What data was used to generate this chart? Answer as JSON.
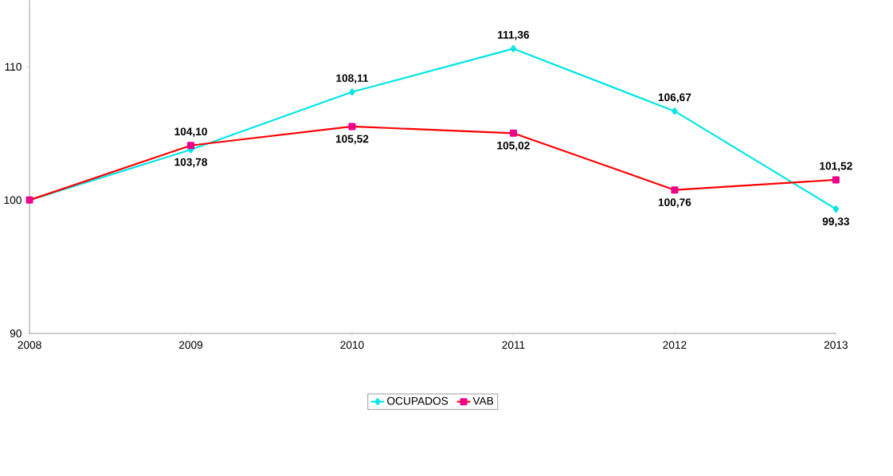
{
  "chart_data": {
    "type": "line",
    "categories": [
      "2008",
      "2009",
      "2010",
      "2011",
      "2012",
      "2013"
    ],
    "series": [
      {
        "name": "OCUPADOS",
        "color": "#00e5e5",
        "marker": "diamond",
        "values": [
          100,
          103.78,
          108.11,
          111.36,
          106.67,
          99.33
        ],
        "value_labels": [
          null,
          "103,78",
          "108,11",
          "111,36",
          "106,67",
          "99,33"
        ]
      },
      {
        "name": "VAB",
        "color": "#ff0000",
        "marker": "square",
        "values": [
          100,
          104.1,
          105.52,
          105.02,
          100.76,
          101.52
        ],
        "value_labels": [
          null,
          "104,10",
          "105,52",
          "105,02",
          "100,76",
          "101,52"
        ]
      }
    ],
    "ylim": [
      90,
      115
    ],
    "yticks": [
      90,
      100,
      110
    ],
    "grid": false,
    "legend": "bottom",
    "line_style": "solid"
  }
}
